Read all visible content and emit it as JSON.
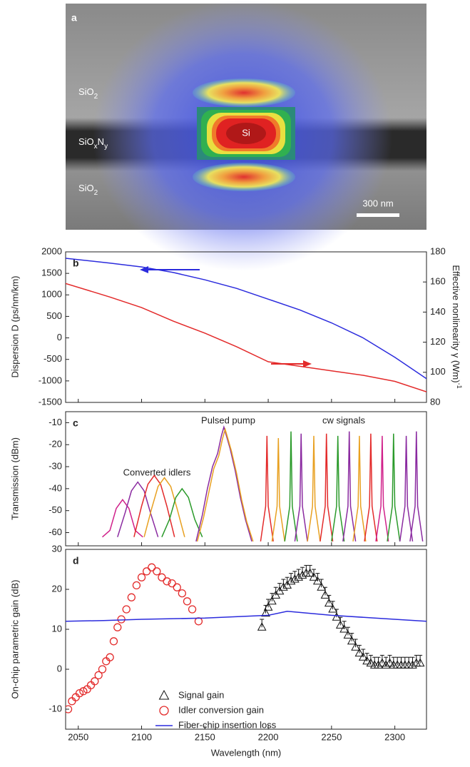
{
  "panel_a": {
    "label": "a",
    "materials": [
      [
        "SiO",
        "2"
      ],
      [
        "SiO",
        "x",
        "N",
        "y"
      ],
      [
        "SiO",
        "2"
      ]
    ],
    "core": "Si",
    "scale_bar": "300 nm"
  },
  "chart_data": [
    {
      "type": "line",
      "label": "b",
      "ylabel": "Dispersion D (ps/nm/km)",
      "y2label": "Effective nonlinearity γ (Wm)",
      "y2label_sup": "-1",
      "xlim": [
        2040,
        2325
      ],
      "xticks": [
        2050,
        2100,
        2150,
        2200,
        2250,
        2300
      ],
      "ylim": [
        -1500,
        2000
      ],
      "yticks": [
        -1500,
        -1000,
        -500,
        0,
        500,
        1000,
        1500,
        2000
      ],
      "y2lim": [
        80,
        180
      ],
      "y2ticks": [
        80,
        100,
        120,
        140,
        160,
        180
      ],
      "x": [
        2040,
        2075,
        2100,
        2125,
        2150,
        2175,
        2200,
        2225,
        2250,
        2275,
        2300,
        2325
      ],
      "series": [
        {
          "color": "#2b2bdd",
          "values": [
            1850,
            1740,
            1650,
            1520,
            1350,
            1150,
            900,
            650,
            350,
            0,
            -450,
            -950
          ]
        },
        {
          "color": "#e32a2a",
          "axis": "y2",
          "values": [
            159,
            150,
            143,
            134,
            126,
            117,
            107,
            104,
            101,
            98,
            94,
            87
          ]
        }
      ]
    },
    {
      "type": "line",
      "label": "c",
      "ylabel": "Transmission (dBm)",
      "annotations": [
        "Pulsed pump",
        "cw signals",
        "Converted idlers"
      ],
      "xlim": [
        2040,
        2325
      ],
      "xticks": [
        2050,
        2100,
        2150,
        2200,
        2250,
        2300
      ],
      "ylim": [
        -66,
        -5
      ],
      "yticks": [
        -60,
        -50,
        -40,
        -30,
        -20,
        -10
      ],
      "series": [
        {
          "color": "#d0208a",
          "x": [
            2069,
            2075,
            2080,
            2085,
            2090,
            2095,
            2101
          ],
          "values": [
            -62,
            -59,
            -49,
            -45,
            -49,
            -59,
            -62
          ]
        },
        {
          "color": "#8a2aa0",
          "x": [
            2081,
            2087,
            2092,
            2097,
            2102,
            2107,
            2113
          ],
          "values": [
            -62,
            -51,
            -41,
            -37,
            -41,
            -51,
            -62
          ]
        },
        {
          "color": "#e32a2a",
          "x": [
            2094,
            2100,
            2105,
            2110,
            2115,
            2120,
            2126
          ],
          "values": [
            -62,
            -48,
            -38,
            -34,
            -38,
            -48,
            -62
          ]
        },
        {
          "color": "#e8a020",
          "x": [
            2102,
            2108,
            2113,
            2118,
            2123,
            2128,
            2134
          ],
          "values": [
            -62,
            -49,
            -39,
            -35,
            -39,
            -49,
            -62
          ]
        },
        {
          "color": "#2a9a2a",
          "x": [
            2116,
            2122,
            2127,
            2132,
            2137,
            2142,
            2148
          ],
          "values": [
            -62,
            -54,
            -44,
            -40,
            -44,
            -54,
            -62
          ]
        },
        {
          "color": "#8a2aa0",
          "x": [
            2143,
            2148,
            2152,
            2156,
            2160,
            2163,
            2165,
            2167,
            2170,
            2174,
            2178,
            2182,
            2187
          ],
          "values": [
            -64,
            -52,
            -40,
            -30,
            -24,
            -16,
            -12,
            -16,
            -22,
            -32,
            -44,
            -54,
            -64
          ]
        },
        {
          "color": "#e8a020",
          "x": [
            2144,
            2149,
            2153,
            2157,
            2161,
            2164,
            2166,
            2168,
            2171,
            2175,
            2179,
            2183,
            2188
          ],
          "values": [
            -64,
            -53,
            -42,
            -31,
            -25,
            -17,
            -13,
            -17,
            -23,
            -33,
            -45,
            -55,
            -64
          ]
        },
        {
          "color": "#e32a2a",
          "x": [
            2194,
            2198,
            2199,
            2200,
            2204
          ],
          "values": [
            -64,
            -48,
            -16,
            -48,
            -64
          ]
        },
        {
          "color": "#e8a020",
          "x": [
            2203,
            2207,
            2208,
            2209,
            2213
          ],
          "values": [
            -64,
            -48,
            -17,
            -48,
            -64
          ]
        },
        {
          "color": "#2a9a2a",
          "x": [
            2213,
            2217,
            2218,
            2219,
            2223
          ],
          "values": [
            -64,
            -48,
            -14,
            -48,
            -64
          ]
        },
        {
          "color": "#8a2aa0",
          "x": [
            2221,
            2225,
            2226,
            2227,
            2231
          ],
          "values": [
            -64,
            -48,
            -15,
            -48,
            -64
          ]
        },
        {
          "color": "#e8a020",
          "x": [
            2231,
            2235,
            2236,
            2237,
            2241
          ],
          "values": [
            -64,
            -48,
            -16,
            -48,
            -64
          ]
        },
        {
          "color": "#e32a2a",
          "x": [
            2241,
            2245,
            2246,
            2247,
            2251
          ],
          "values": [
            -64,
            -48,
            -15,
            -48,
            -64
          ]
        },
        {
          "color": "#2a9a2a",
          "x": [
            2250,
            2254,
            2255,
            2256,
            2260
          ],
          "values": [
            -64,
            -48,
            -16,
            -48,
            -64
          ]
        },
        {
          "color": "#8a2aa0",
          "x": [
            2259,
            2263,
            2264,
            2265,
            2269
          ],
          "values": [
            -64,
            -48,
            -14,
            -48,
            -64
          ]
        },
        {
          "color": "#e8a020",
          "x": [
            2267,
            2271,
            2272,
            2273,
            2277
          ],
          "values": [
            -64,
            -48,
            -16,
            -48,
            -64
          ]
        },
        {
          "color": "#e32a2a",
          "x": [
            2276,
            2280,
            2281,
            2282,
            2286
          ],
          "values": [
            -64,
            -48,
            -15,
            -48,
            -64
          ]
        },
        {
          "color": "#d0208a",
          "x": [
            2285,
            2289,
            2290,
            2291,
            2295
          ],
          "values": [
            -64,
            -48,
            -16,
            -48,
            -64
          ]
        },
        {
          "color": "#2a9a2a",
          "x": [
            2294,
            2298,
            2299,
            2300,
            2304
          ],
          "values": [
            -64,
            -48,
            -15,
            -48,
            -64
          ]
        },
        {
          "color": "#8a2aa0",
          "x": [
            2304,
            2308,
            2309,
            2310,
            2314
          ],
          "values": [
            -64,
            -48,
            -16,
            -48,
            -64
          ]
        },
        {
          "color": "#8a2aa0",
          "x": [
            2312,
            2316,
            2317,
            2318,
            2322
          ],
          "values": [
            -64,
            -48,
            -14,
            -48,
            -64
          ]
        }
      ]
    },
    {
      "type": "scatter",
      "label": "d",
      "ylabel": "On-chip parametric gain (dB)",
      "xlabel": "Wavelength (nm)",
      "xlim": [
        2040,
        2325
      ],
      "xticks": [
        2050,
        2100,
        2150,
        2200,
        2250,
        2300
      ],
      "ylim": [
        -15,
        30
      ],
      "yticks": [
        -10,
        0,
        10,
        20,
        30
      ],
      "legend": "bottom-center",
      "series": [
        {
          "name": "Signal gain",
          "marker": "triangle",
          "color": "#111111",
          "yerr": 2,
          "x": [
            2195,
            2198,
            2200,
            2203,
            2206,
            2209,
            2212,
            2215,
            2218,
            2221,
            2224,
            2227,
            2230,
            2233,
            2236,
            2239,
            2242,
            2245,
            2248,
            2251,
            2254,
            2257,
            2260,
            2263,
            2266,
            2269,
            2272,
            2275,
            2278,
            2281,
            2284,
            2287,
            2290,
            2293,
            2296,
            2299,
            2302,
            2305,
            2308,
            2311,
            2314,
            2317,
            2320
          ],
          "values": [
            10.5,
            14,
            15.5,
            17,
            18.5,
            19.5,
            20.5,
            21,
            22,
            22.5,
            23,
            23.5,
            24,
            24,
            23,
            22,
            20.5,
            18.5,
            16.5,
            15,
            13,
            11,
            10,
            8.5,
            7,
            5.5,
            4,
            3,
            2,
            1.5,
            1,
            1,
            1.5,
            1,
            1.5,
            1,
            1,
            1,
            1,
            1,
            1,
            1.5,
            1.5
          ]
        },
        {
          "name": "Idler conversion gain",
          "marker": "circle",
          "color": "#e32a2a",
          "x": [
            2042,
            2045,
            2048,
            2051,
            2054,
            2057,
            2060,
            2063,
            2066,
            2069,
            2072,
            2075,
            2078,
            2081,
            2084,
            2088,
            2092,
            2096,
            2100,
            2104,
            2108,
            2112,
            2116,
            2120,
            2124,
            2128,
            2132,
            2136,
            2140,
            2145
          ],
          "values": [
            -10,
            -8,
            -7,
            -6,
            -5.5,
            -5,
            -4,
            -3,
            -1.5,
            0,
            2,
            3,
            7,
            10.5,
            12.5,
            15,
            18,
            21,
            23,
            24.5,
            25.5,
            24.5,
            23,
            22,
            21.5,
            20.5,
            19,
            17,
            15,
            12
          ]
        },
        {
          "name": "Fiber-chip insertion loss",
          "marker": "line",
          "color": "#2b2bdd",
          "x": [
            2040,
            2070,
            2100,
            2150,
            2200,
            2215,
            2250,
            2300,
            2325
          ],
          "values": [
            12,
            12.2,
            12.5,
            12.8,
            13.5,
            14.5,
            13.5,
            12.5,
            12
          ]
        }
      ]
    }
  ]
}
